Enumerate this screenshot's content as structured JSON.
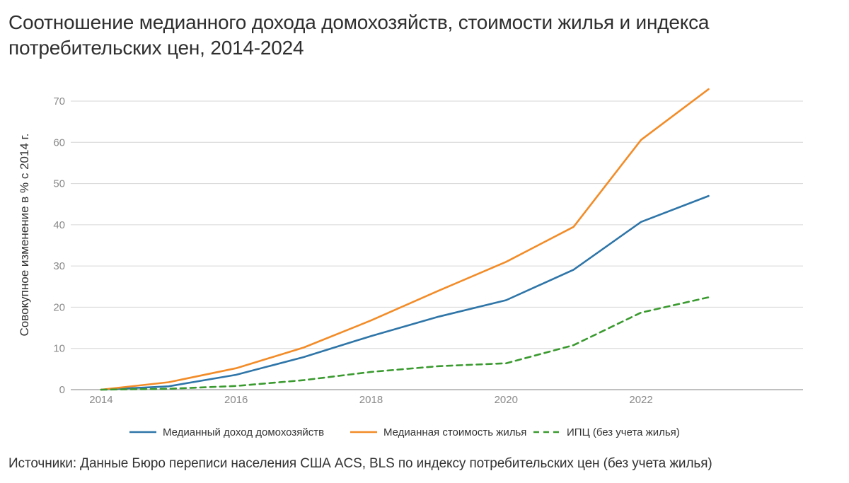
{
  "title": "Соотношение медианного дохода домохозяйств, стоимости жилья и индекса потребительских цен, 2014-2024",
  "source": "Источники: Данные Бюро переписи населения США ACS, BLS по индексу потребительских цен (без учета жилья)",
  "chart_data": {
    "type": "line",
    "title": "Соотношение медианного дохода домохозяйств, стоимости жилья и индекса потребительских цен, 2014-2024",
    "xlabel": "",
    "ylabel": "Совокупное изменение в % с 2014 г.",
    "x": [
      2014,
      2015,
      2016,
      2017,
      2018,
      2019,
      2020,
      2021,
      2022,
      2023
    ],
    "xlim": [
      2013.55,
      2024.4
    ],
    "ylim": [
      0,
      70
    ],
    "x_ticks": [
      2014,
      2016,
      2018,
      2020,
      2022
    ],
    "y_ticks": [
      0,
      10,
      20,
      30,
      40,
      50,
      60,
      70
    ],
    "grid": true,
    "legend_position": "bottom",
    "series": [
      {
        "name": "Медианный доход домохозяйств",
        "color": "#2e75a8",
        "style": "solid",
        "values": [
          0,
          0.8,
          3.6,
          7.9,
          13.0,
          17.7,
          21.7,
          29.1,
          40.7,
          47.0
        ]
      },
      {
        "name": "Медианная стоимость жилья",
        "color": "#f28c28",
        "style": "solid",
        "values": [
          0,
          1.8,
          5.2,
          10.2,
          16.8,
          24.0,
          31.0,
          39.5,
          60.6,
          72.9
        ]
      },
      {
        "name": "ИПЦ (без учета жилья)",
        "color": "#3a9a2f",
        "style": "dashed",
        "values": [
          0,
          0.2,
          0.9,
          2.3,
          4.3,
          5.7,
          6.4,
          10.8,
          18.7,
          22.4
        ]
      }
    ]
  }
}
